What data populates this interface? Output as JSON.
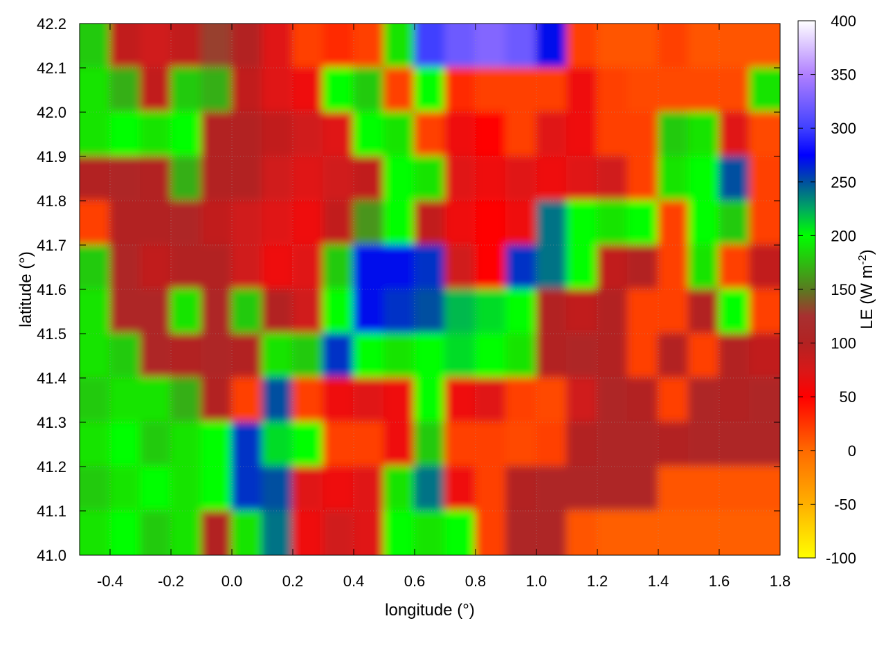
{
  "chart_data": {
    "type": "heatmap",
    "xlabel": "longitude (°)",
    "ylabel": "latitude (°)",
    "xlim": [
      -0.5,
      1.8
    ],
    "ylim": [
      41.0,
      42.2
    ],
    "grid": true,
    "x_ticks": [
      "-0.4",
      "-0.2",
      "0.0",
      "0.2",
      "0.4",
      "0.6",
      "0.8",
      "1.0",
      "1.2",
      "1.4",
      "1.6",
      "1.8"
    ],
    "y_ticks": [
      "41.0",
      "41.1",
      "41.2",
      "41.3",
      "41.4",
      "41.5",
      "41.6",
      "41.7",
      "41.8",
      "41.9",
      "42.0",
      "42.1",
      "42.2"
    ],
    "x": [
      -0.45,
      -0.35,
      -0.25,
      -0.15,
      -0.05,
      0.05,
      0.15,
      0.25,
      0.35,
      0.45,
      0.55,
      0.65,
      0.75,
      0.85,
      0.95,
      1.05,
      1.15,
      1.25,
      1.35,
      1.45,
      1.55,
      1.65,
      1.75
    ],
    "y": [
      42.15,
      42.05,
      41.95,
      41.85,
      41.75,
      41.65,
      41.55,
      41.45,
      41.35,
      41.25,
      41.15,
      41.05
    ],
    "z": [
      [
        180,
        90,
        80,
        90,
        130,
        100,
        70,
        20,
        30,
        20,
        190,
        300,
        320,
        330,
        320,
        270,
        20,
        10,
        10,
        20,
        10,
        10,
        10
      ],
      [
        190,
        170,
        90,
        180,
        170,
        90,
        70,
        60,
        200,
        180,
        20,
        200,
        30,
        20,
        20,
        20,
        60,
        20,
        15,
        15,
        15,
        15,
        190
      ],
      [
        190,
        200,
        190,
        200,
        100,
        100,
        90,
        80,
        70,
        200,
        190,
        20,
        60,
        50,
        20,
        70,
        60,
        20,
        20,
        180,
        190,
        70,
        15
      ],
      [
        100,
        110,
        100,
        170,
        100,
        100,
        80,
        70,
        80,
        90,
        200,
        190,
        70,
        60,
        70,
        60,
        70,
        80,
        20,
        190,
        200,
        250,
        20
      ],
      [
        20,
        100,
        100,
        110,
        90,
        80,
        70,
        60,
        90,
        160,
        200,
        90,
        60,
        50,
        60,
        240,
        200,
        190,
        200,
        20,
        200,
        180,
        20
      ],
      [
        180,
        110,
        90,
        100,
        100,
        80,
        60,
        70,
        180,
        270,
        270,
        260,
        80,
        50,
        260,
        240,
        200,
        90,
        100,
        20,
        190,
        20,
        90
      ],
      [
        190,
        110,
        110,
        190,
        110,
        180,
        100,
        80,
        200,
        270,
        260,
        250,
        220,
        210,
        200,
        100,
        90,
        100,
        20,
        20,
        100,
        200,
        20
      ],
      [
        190,
        180,
        110,
        100,
        110,
        100,
        190,
        180,
        260,
        200,
        190,
        200,
        210,
        200,
        190,
        100,
        110,
        100,
        20,
        100,
        20,
        100,
        90
      ],
      [
        180,
        190,
        190,
        170,
        100,
        20,
        250,
        20,
        60,
        70,
        60,
        200,
        60,
        70,
        20,
        15,
        80,
        110,
        100,
        20,
        110,
        100,
        110
      ],
      [
        190,
        200,
        180,
        190,
        200,
        260,
        210,
        200,
        20,
        20,
        60,
        180,
        20,
        20,
        15,
        20,
        100,
        110,
        110,
        100,
        110,
        110,
        110
      ],
      [
        180,
        190,
        200,
        190,
        200,
        260,
        250,
        70,
        60,
        70,
        190,
        240,
        60,
        20,
        100,
        110,
        110,
        110,
        110,
        10,
        10,
        10,
        10
      ],
      [
        190,
        200,
        180,
        190,
        100,
        190,
        240,
        60,
        80,
        70,
        200,
        190,
        200,
        20,
        110,
        110,
        10,
        5,
        5,
        5,
        5,
        5,
        5
      ]
    ],
    "colorbar": {
      "label": "LE (W m",
      "label_sup": "-2",
      "label_end": ")",
      "range": [
        -100,
        400
      ],
      "ticks": [
        "400",
        "350",
        "300",
        "250",
        "200",
        "150",
        "100",
        "50",
        "0",
        "-50",
        "-100"
      ],
      "stops": [
        [
          -100,
          "#ffff00"
        ],
        [
          -50,
          "#ffb000"
        ],
        [
          0,
          "#ff6a00"
        ],
        [
          50,
          "#ff0000"
        ],
        [
          75,
          "#d81818"
        ],
        [
          100,
          "#b22222"
        ],
        [
          125,
          "#a83030"
        ],
        [
          150,
          "#5a7a20"
        ],
        [
          200,
          "#00ff00"
        ],
        [
          225,
          "#00a860"
        ],
        [
          250,
          "#0050a0"
        ],
        [
          275,
          "#0000ff"
        ],
        [
          300,
          "#4040ff"
        ],
        [
          350,
          "#b080ff"
        ],
        [
          400,
          "#ffffff"
        ]
      ]
    }
  }
}
